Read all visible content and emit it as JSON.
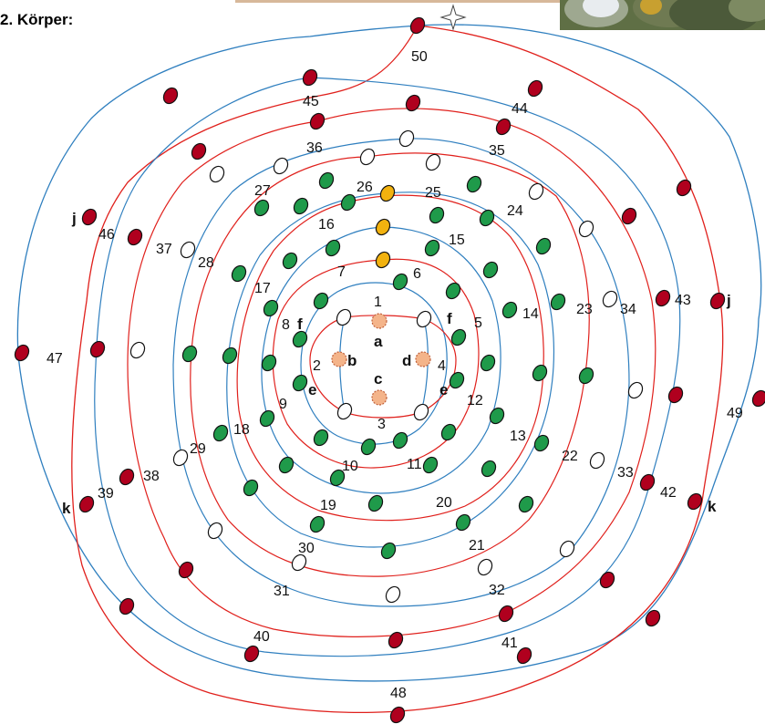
{
  "title": "2. Körper:",
  "colors": {
    "red_thread": "#e0201c",
    "blue_thread": "#2f7fbf",
    "red_bead": "#b0001e",
    "green_bead": "#1f9a4a",
    "gold_bead": "#f2b20f",
    "peach_bead": "#f4b48a"
  },
  "numbers": [
    "1",
    "2",
    "3",
    "4",
    "5",
    "6",
    "7",
    "8",
    "9",
    "10",
    "11",
    "12",
    "13",
    "14",
    "15",
    "16",
    "17",
    "18",
    "19",
    "20",
    "21",
    "22",
    "23",
    "24",
    "25",
    "26",
    "27",
    "28",
    "29",
    "30",
    "31",
    "32",
    "33",
    "34",
    "35",
    "36",
    "37",
    "38",
    "39",
    "40",
    "41",
    "42",
    "43",
    "44",
    "45",
    "46",
    "47",
    "48",
    "49",
    "50"
  ],
  "letters": {
    "a": "a",
    "b": "b",
    "c": "c",
    "d": "d",
    "e": "e",
    "f": "f",
    "j": "j",
    "k": "k"
  }
}
